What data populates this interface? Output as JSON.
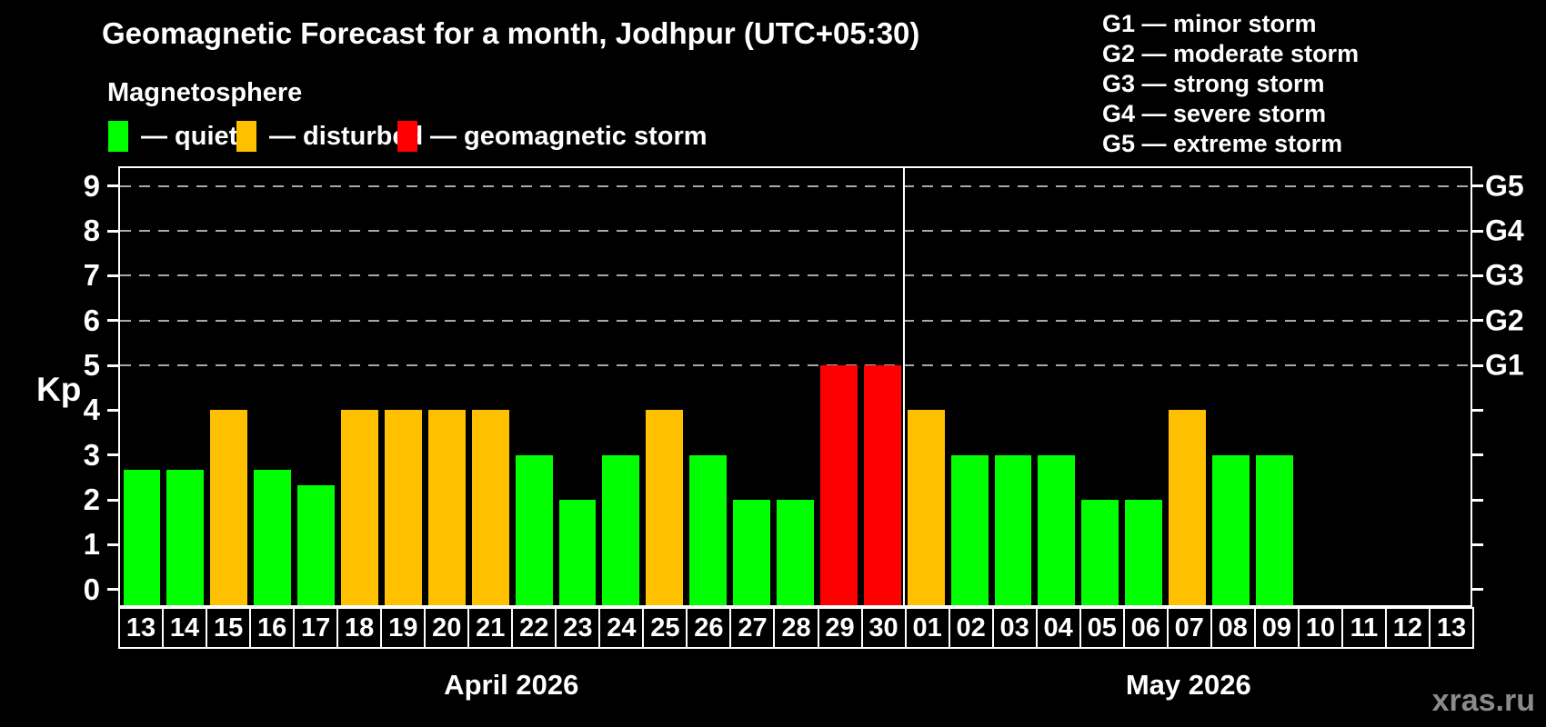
{
  "title": "Geomagnetic Forecast for a month, Jodhpur (UTC+05:30)",
  "subtitle": "Magnetosphere",
  "legend": {
    "items": [
      {
        "name": "quiet",
        "label": "— quiet",
        "color": "#00ff00",
        "x": 119
      },
      {
        "name": "disturbed",
        "label": "— disturbed",
        "color": "#ffc000",
        "x": 260
      },
      {
        "name": "storm",
        "label": "— geomagnetic storm",
        "color": "#ff0000",
        "x": 437
      }
    ]
  },
  "g_scale_legend": {
    "items": [
      "G1 — minor storm",
      "G2 — moderate storm",
      "G3 — strong storm",
      "G4 — severe storm",
      "G5 — extreme storm"
    ]
  },
  "watermark": "xras.ru",
  "chart_data": {
    "type": "bar",
    "ylabel": "Kp",
    "ylim": [
      -0.35,
      9.4
    ],
    "y_ticks": [
      0,
      1,
      2,
      3,
      4,
      5,
      6,
      7,
      8,
      9
    ],
    "gridlines": [
      5,
      6,
      7,
      8,
      9
    ],
    "grid_on": true,
    "right_axis_labels": [
      {
        "value": 5,
        "label": "G1"
      },
      {
        "value": 6,
        "label": "G2"
      },
      {
        "value": 7,
        "label": "G3"
      },
      {
        "value": 8,
        "label": "G4"
      },
      {
        "value": 9,
        "label": "G5"
      }
    ],
    "colors": {
      "quiet": "#00ff00",
      "disturbed": "#ffc000",
      "storm": "#ff0000"
    },
    "months": [
      {
        "label": "April 2026",
        "start_index": 0,
        "num_days": 18
      },
      {
        "label": "May 2026",
        "start_index": 18,
        "num_days": 13
      }
    ],
    "days": [
      {
        "date": "13",
        "kp": 2.67,
        "condition": "quiet"
      },
      {
        "date": "14",
        "kp": 2.67,
        "condition": "quiet"
      },
      {
        "date": "15",
        "kp": 4,
        "condition": "disturbed"
      },
      {
        "date": "16",
        "kp": 2.67,
        "condition": "quiet"
      },
      {
        "date": "17",
        "kp": 2.33,
        "condition": "quiet"
      },
      {
        "date": "18",
        "kp": 4,
        "condition": "disturbed"
      },
      {
        "date": "19",
        "kp": 4,
        "condition": "disturbed"
      },
      {
        "date": "20",
        "kp": 4,
        "condition": "disturbed"
      },
      {
        "date": "21",
        "kp": 4,
        "condition": "disturbed"
      },
      {
        "date": "22",
        "kp": 3,
        "condition": "quiet"
      },
      {
        "date": "23",
        "kp": 2,
        "condition": "quiet"
      },
      {
        "date": "24",
        "kp": 3,
        "condition": "quiet"
      },
      {
        "date": "25",
        "kp": 4,
        "condition": "disturbed"
      },
      {
        "date": "26",
        "kp": 3,
        "condition": "quiet"
      },
      {
        "date": "27",
        "kp": 2,
        "condition": "quiet"
      },
      {
        "date": "28",
        "kp": 2,
        "condition": "quiet"
      },
      {
        "date": "29",
        "kp": 5,
        "condition": "storm"
      },
      {
        "date": "30",
        "kp": 5,
        "condition": "storm"
      },
      {
        "date": "01",
        "kp": 4,
        "condition": "disturbed"
      },
      {
        "date": "02",
        "kp": 3,
        "condition": "quiet"
      },
      {
        "date": "03",
        "kp": 3,
        "condition": "quiet"
      },
      {
        "date": "04",
        "kp": 3,
        "condition": "quiet"
      },
      {
        "date": "05",
        "kp": 2,
        "condition": "quiet"
      },
      {
        "date": "06",
        "kp": 2,
        "condition": "quiet"
      },
      {
        "date": "07",
        "kp": 4,
        "condition": "disturbed"
      },
      {
        "date": "08",
        "kp": 3,
        "condition": "quiet"
      },
      {
        "date": "09",
        "kp": 3,
        "condition": "quiet"
      },
      {
        "date": "10",
        "kp": null,
        "condition": null
      },
      {
        "date": "11",
        "kp": null,
        "condition": null
      },
      {
        "date": "12",
        "kp": null,
        "condition": null
      },
      {
        "date": "13",
        "kp": null,
        "condition": null
      }
    ]
  }
}
